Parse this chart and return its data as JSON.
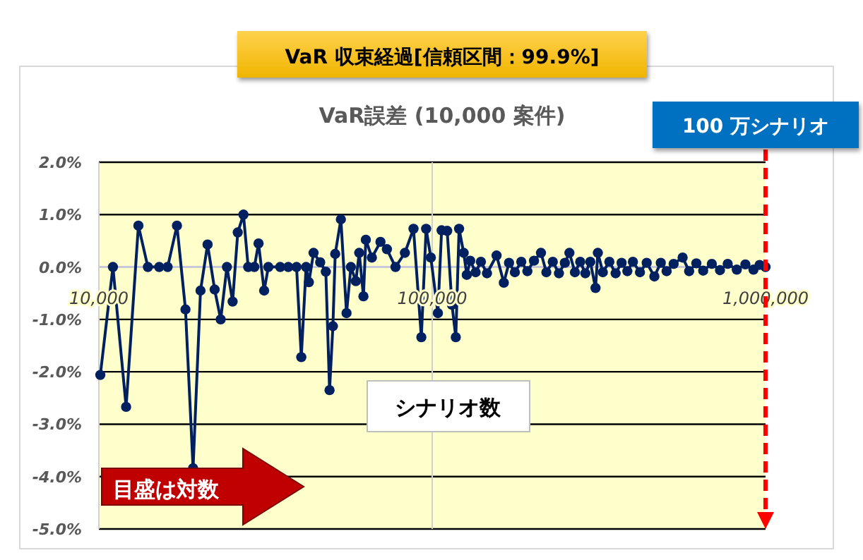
{
  "chart_data": {
    "type": "line",
    "title": "VaR 収束経過[信頼区間：99.9%]",
    "subtitle": "VaR誤差 (10,000 案件)",
    "xlabel": "シナリオ数",
    "annotations": [
      "目盛は対数"
    ],
    "x": [
      10100,
      11020,
      12070,
      13140,
      14030,
      15170,
      16080,
      17150,
      18190,
      19170,
      20180,
      21190,
      22250,
      23200,
      24220,
      25190,
      26100,
      27150,
      28050,
      29270,
      30130,
      31320,
      32240,
      35000,
      37000,
      39180,
      40480,
      41850,
      42660,
      44060,
      46130,
      47960,
      49210,
      50360,
      51170,
      53210,
      55330,
      57020,
      59020,
      60400,
      62190,
      63220,
      65920,
      69950,
      73140,
      77600,
      82810,
      87880,
      92770,
      95880,
      99060,
      104000,
      106700,
      110900,
      114600,
      117700,
      120400,
      124300,
      127000,
      130000,
      135000,
      140000,
      146000,
      156000,
      164000,
      170000,
      177000,
      185000,
      193000,
      202000,
      212000,
      220000,
      230000,
      240000,
      250000,
      258000,
      268000,
      278000,
      288000,
      298000,
      309000,
      314000,
      325000,
      340000,
      355000,
      370000,
      385000,
      400000,
      420000,
      440000,
      464000,
      485000,
      505000,
      530000,
      564000,
      590000,
      620000,
      650000,
      690000,
      730000,
      770000,
      820000,
      870000,
      920000,
      960000,
      1000000
    ],
    "series": [
      {
        "color": "#002060",
        "values": [
          -2.06,
          0,
          -2.67,
          0.79,
          0,
          0,
          0,
          0.79,
          -0.81,
          -3.84,
          -0.45,
          0.43,
          -0.43,
          -1.0,
          0,
          -0.66,
          0.66,
          1.0,
          0,
          0,
          0.45,
          -0.45,
          0,
          0,
          0,
          0,
          -1.72,
          0,
          -0.29,
          0.27,
          0.09,
          -0.09,
          -2.35,
          -1.13,
          0.25,
          0.91,
          -0.88,
          0,
          -0.27,
          0.27,
          -0.56,
          0.52,
          0.18,
          0.48,
          0.34,
          0,
          0.27,
          0.73,
          -1.34,
          0.73,
          0.18,
          -0.88,
          0.7,
          0.69,
          -0.72,
          -1.34,
          0.73,
          0.27,
          -0.15,
          0.12,
          -0.1,
          0.1,
          -0.12,
          0.22,
          -0.3,
          0.08,
          -0.1,
          0.1,
          -0.08,
          0.12,
          0.27,
          -0.1,
          0.1,
          -0.12,
          0.08,
          0.27,
          -0.1,
          0.1,
          -0.12,
          0.1,
          -0.4,
          0.27,
          -0.1,
          0.1,
          -0.12,
          0.08,
          -0.08,
          0.1,
          -0.1,
          0.08,
          -0.18,
          0.08,
          -0.08,
          0.06,
          0.18,
          -0.08,
          0.07,
          -0.07,
          0.06,
          -0.06,
          0.06,
          -0.05,
          0.05,
          -0.05,
          0.04,
          0
        ]
      }
    ],
    "xlim": [
      10000,
      1000000
    ],
    "xticks": [
      {
        "value": 10000,
        "label": "10,000"
      },
      {
        "value": 100000,
        "label": "100,000"
      },
      {
        "value": 1000000,
        "label": "1,000,000"
      }
    ],
    "ylim": [
      -5,
      2
    ],
    "yticks": [
      {
        "value": -5,
        "label": "-5.0%"
      },
      {
        "value": -4,
        "label": "-4.0%"
      },
      {
        "value": -3,
        "label": "-3.0%"
      },
      {
        "value": -2,
        "label": "-2.0%"
      },
      {
        "value": -1,
        "label": "-1.0%"
      },
      {
        "value": 0,
        "label": "0.0%"
      },
      {
        "value": 1,
        "label": "1.0%"
      },
      {
        "value": 2,
        "label": "2.0%"
      }
    ],
    "log": "x",
    "grid": "y",
    "marker": "circle",
    "line_style": "solid",
    "ref_lines": [
      {
        "axis": "x",
        "value": 100000,
        "color": "#d0d0d0",
        "line_style": "solid"
      },
      {
        "axis": "x",
        "value": 1000000,
        "label": "100 万シナリオ",
        "color": "#ff0000",
        "line_style": "dashed"
      }
    ]
  }
}
